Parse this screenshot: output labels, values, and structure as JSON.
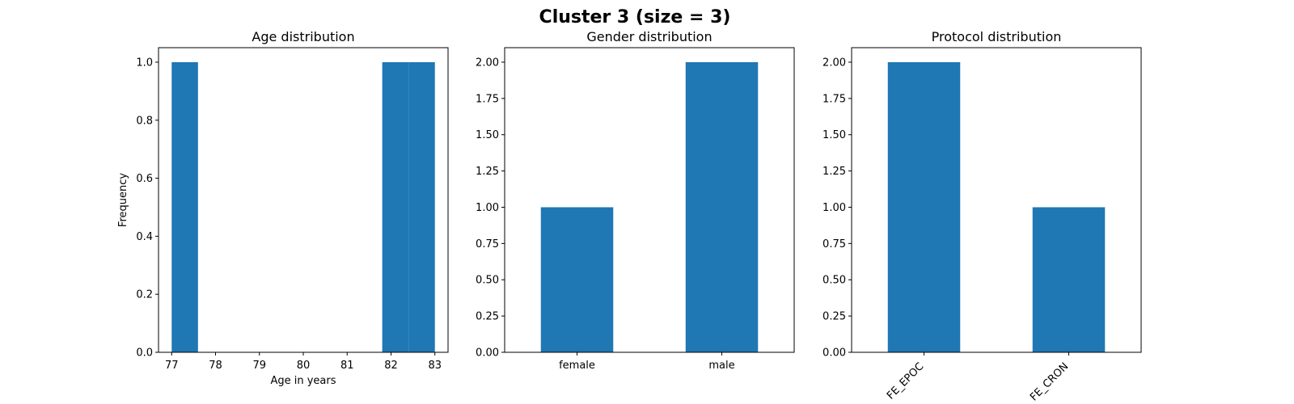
{
  "figure": {
    "suptitle": "Cluster 3 (size = 3)"
  },
  "chart_data": [
    {
      "type": "bar",
      "title": "Age distribution",
      "xlabel": "Age in years",
      "ylabel": "Frequency",
      "bins": [
        {
          "start": 77.0,
          "end": 77.6,
          "count": 1
        },
        {
          "start": 77.6,
          "end": 78.2,
          "count": 0
        },
        {
          "start": 78.2,
          "end": 78.8,
          "count": 0
        },
        {
          "start": 78.8,
          "end": 79.4,
          "count": 0
        },
        {
          "start": 79.4,
          "end": 80.0,
          "count": 0
        },
        {
          "start": 80.0,
          "end": 80.6,
          "count": 0
        },
        {
          "start": 80.6,
          "end": 81.2,
          "count": 0
        },
        {
          "start": 81.2,
          "end": 81.8,
          "count": 0
        },
        {
          "start": 81.8,
          "end": 82.4,
          "count": 1
        },
        {
          "start": 82.4,
          "end": 83.0,
          "count": 1
        }
      ],
      "xlim": [
        76.7,
        83.3
      ],
      "ylim": [
        0,
        1.05
      ],
      "xticks": [
        "77",
        "78",
        "79",
        "80",
        "81",
        "82",
        "83"
      ],
      "yticks": [
        "0.0",
        "0.2",
        "0.4",
        "0.6",
        "0.8",
        "1.0"
      ]
    },
    {
      "type": "bar",
      "title": "Gender distribution",
      "categories": [
        "female",
        "male"
      ],
      "values": [
        1,
        2
      ],
      "ylim": [
        0,
        2.1
      ],
      "yticks": [
        "0.00",
        "0.25",
        "0.50",
        "0.75",
        "1.00",
        "1.25",
        "1.50",
        "1.75",
        "2.00"
      ]
    },
    {
      "type": "bar",
      "title": "Protocol distribution",
      "categories": [
        "FE_EPOC",
        "FE_CRON"
      ],
      "values": [
        2,
        1
      ],
      "ylim": [
        0,
        2.1
      ],
      "yticks": [
        "0.00",
        "0.25",
        "0.50",
        "0.75",
        "1.00",
        "1.25",
        "1.50",
        "1.75",
        "2.00"
      ]
    }
  ]
}
